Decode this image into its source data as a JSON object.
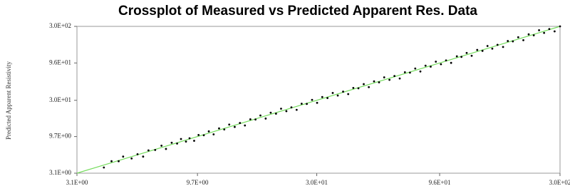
{
  "chart_data": {
    "type": "scatter",
    "title": "Crossplot of Measured vs Predicted Apparent Res. Data",
    "y_label": "Predicted Apparent Resistivity",
    "log_x": true,
    "log_y": true,
    "xlim": [
      3.1,
      300
    ],
    "ylim": [
      3.1,
      300
    ],
    "xticks": [
      {
        "value": 3.1,
        "label": "3.1E+00"
      },
      {
        "value": 9.7,
        "label": "9.7E+00"
      },
      {
        "value": 30,
        "label": "3.0E+01"
      },
      {
        "value": 96,
        "label": "9.6E+01"
      },
      {
        "value": 300,
        "label": "3.0E+02"
      }
    ],
    "yticks": [
      {
        "value": 3.1,
        "label": "3.1E+00"
      },
      {
        "value": 9.7,
        "label": "9.7E+00"
      },
      {
        "value": 30,
        "label": "3.0E+01"
      },
      {
        "value": 96,
        "label": "9.6E+01"
      },
      {
        "value": 300,
        "label": "3.0E+02"
      }
    ],
    "line_color": "#74dc5c",
    "x": [
      4.0,
      4.3,
      4.6,
      4.8,
      5.2,
      5.5,
      5.8,
      6.1,
      6.5,
      6.9,
      7.2,
      7.6,
      8.0,
      8.3,
      8.7,
      9.0,
      9.4,
      9.8,
      10.3,
      10.8,
      11.3,
      11.9,
      12.5,
      13.1,
      13.8,
      14.5,
      15.2,
      16.0,
      16.8,
      17.6,
      18.5,
      19.4,
      20.4,
      21.4,
      22.5,
      23.6,
      24.8,
      26.0,
      27.3,
      28.7,
      30.1,
      31.6,
      33.2,
      34.9,
      36.6,
      38.5,
      40.4,
      42.4,
      44.5,
      46.8,
      49.1,
      51.6,
      54.1,
      56.8,
      59.7,
      62.6,
      65.8,
      69.1,
      72.5,
      76.2,
      80.0,
      84.0,
      88.2,
      92.6,
      97.2,
      102,
      107,
      113,
      118,
      124,
      130,
      137,
      144,
      151,
      158,
      166,
      175,
      183,
      192,
      202,
      212,
      223,
      234,
      246,
      258,
      271,
      285,
      300
    ],
    "series": [
      {
        "color": "#000000",
        "values": [
          3.7,
          4.5,
          4.5,
          5.2,
          4.9,
          5.6,
          5.2,
          6.3,
          6.4,
          7.3,
          6.6,
          8.0,
          7.8,
          9.0,
          8.3,
          9.2,
          8.5,
          10.2,
          10.1,
          11.4,
          10.4,
          12.5,
          12.1,
          14.1,
          13.1,
          14.8,
          13.7,
          16.6,
          16.5,
          18.7,
          17.0,
          20.4,
          19.8,
          23.1,
          21.4,
          24.1,
          22.3,
          27.0,
          26.8,
          30.4,
          27.7,
          33.2,
          32.2,
          37.7,
          34.8,
          39.3,
          36.4,
          44.1,
          43.6,
          49.6,
          45.2,
          54.2,
          52.5,
          61.3,
          56.7,
          63.9,
          59.2,
          71.9,
          71.1,
          80.8,
          73.6,
          88.2,
          85.6,
          100,
          92.3,
          104,
          96.3,
          118,
          116,
          131,
          120,
          144,
          140,
          163,
          150,
          169,
          158,
          190,
          188,
          214,
          195,
          234,
          227,
          266,
          245,
          276,
          257,
          300
        ]
      }
    ]
  }
}
